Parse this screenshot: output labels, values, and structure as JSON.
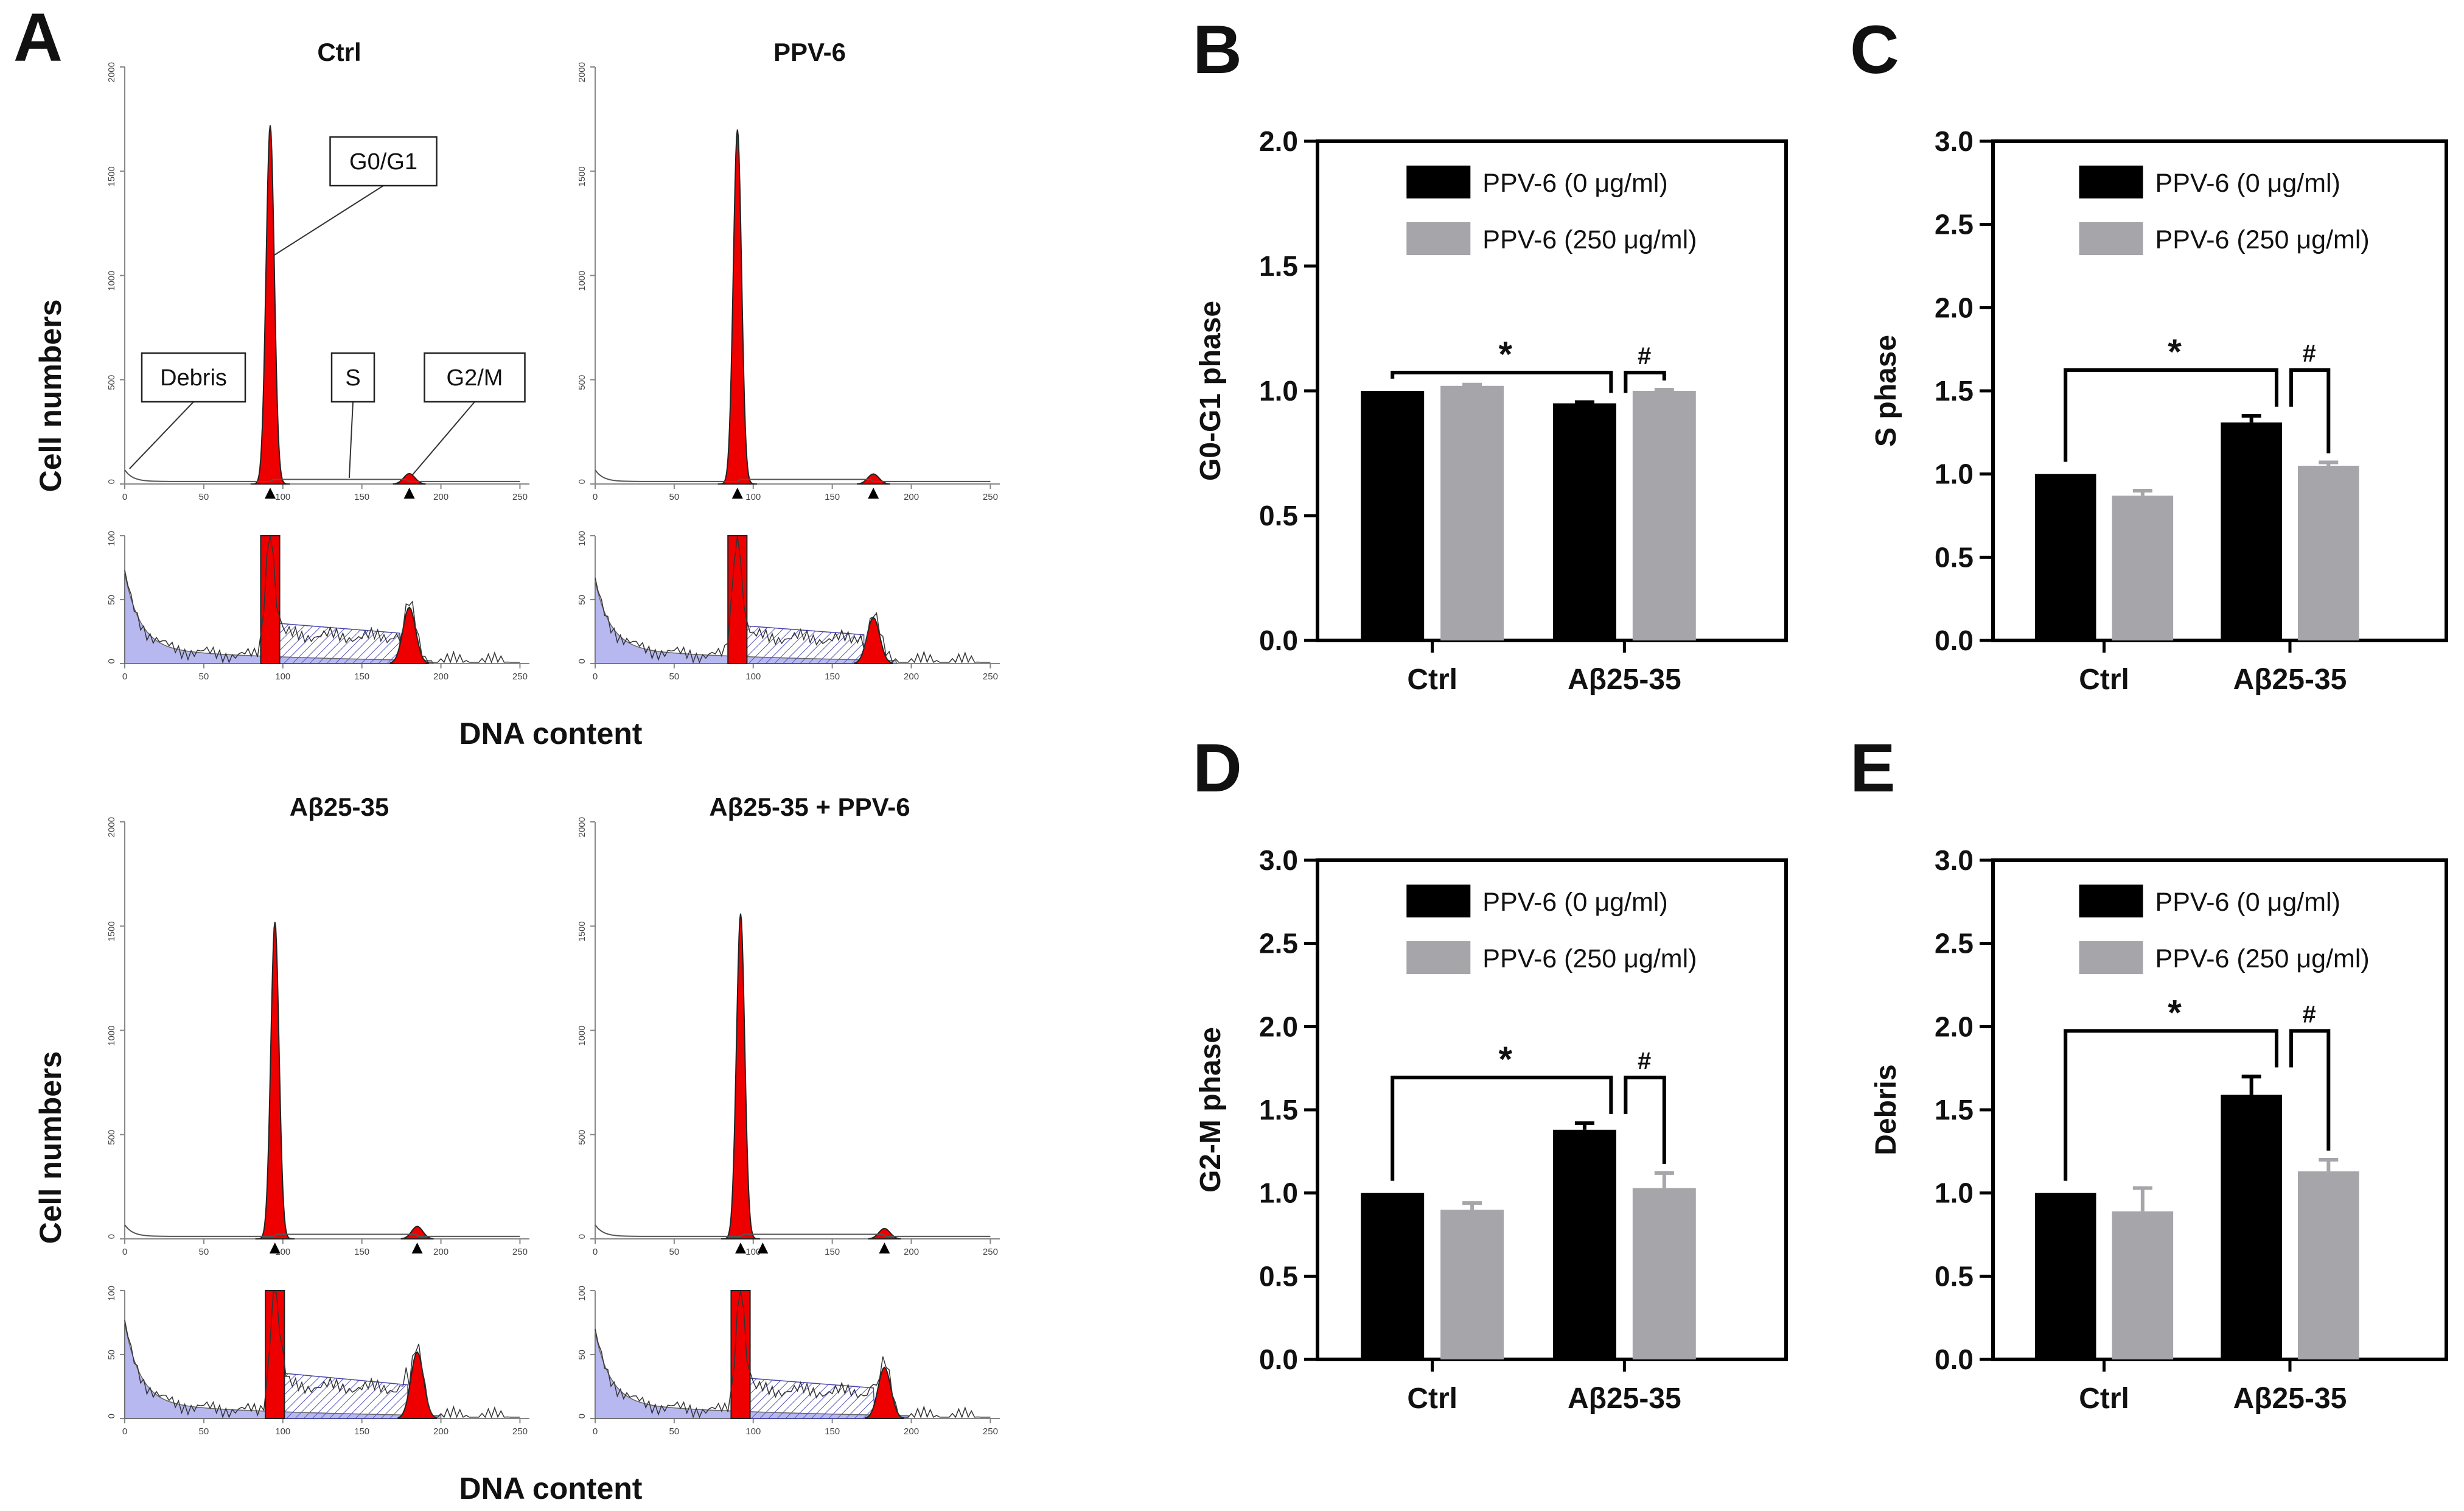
{
  "panel_a": {
    "letter": "A",
    "y_axis_label": "Cell numbers",
    "x_axis_label": "DNA content",
    "hist_top_ticks": [
      "0",
      "500",
      "1000",
      "1500",
      "2000"
    ],
    "hist_zoom_ticks": [
      "0",
      "50",
      "100"
    ],
    "x_ticks": [
      "0",
      "50",
      "100",
      "150",
      "200",
      "250"
    ],
    "annotations": [
      "Debris",
      "G0/G1",
      "S",
      "G2/M"
    ],
    "histograms": [
      {
        "title": "Ctrl",
        "g1_peak_channel": 92,
        "g1_peak_count": 1720,
        "g2_peak_channel": 180,
        "g2_peak_count": 50,
        "g2_zoom_count": 44,
        "debris_zoom": 58,
        "s_zoom": 22,
        "markers": [
          92,
          180
        ]
      },
      {
        "title": "PPV-6",
        "g1_peak_channel": 90,
        "g1_peak_count": 1700,
        "g2_peak_channel": 176,
        "g2_peak_count": 48,
        "g2_zoom_count": 36,
        "debris_zoom": 52,
        "s_zoom": 20,
        "markers": [
          90,
          176
        ]
      },
      {
        "title": "Aβ25-35",
        "g1_peak_channel": 95,
        "g1_peak_count": 1520,
        "g2_peak_channel": 185,
        "g2_peak_count": 60,
        "g2_zoom_count": 52,
        "debris_zoom": 62,
        "s_zoom": 26,
        "markers": [
          95,
          185
        ]
      },
      {
        "title": "Aβ25-35 + PPV-6",
        "g1_peak_channel": 92,
        "g1_peak_count": 1560,
        "g2_peak_channel": 183,
        "g2_peak_count": 50,
        "g2_zoom_count": 40,
        "debris_zoom": 55,
        "s_zoom": 22,
        "markers": [
          92,
          106,
          183
        ]
      }
    ]
  },
  "legend": {
    "black": "PPV-6 (0 μg/ml)",
    "gray": "PPV-6 (250 μg/ml)"
  },
  "colors": {
    "black_bar": "#000000",
    "gray_bar": "#a6a6aa",
    "g_peak": "#ee0000",
    "debris_fill": "#b8b8f0"
  },
  "chart_data": [
    {
      "panel": "B",
      "type": "bar",
      "ylabel": "G0-G1 phase",
      "ylim": [
        0,
        2.0
      ],
      "yticks": [
        "0.0",
        "0.5",
        "1.0",
        "1.5",
        "2.0"
      ],
      "categories": [
        "Ctrl",
        "Aβ25-35"
      ],
      "series": [
        {
          "name": "PPV-6 (0 μg/ml)",
          "values": [
            1.0,
            0.95
          ],
          "errors": [
            0,
            0.005
          ]
        },
        {
          "name": "PPV-6 (250 μg/ml)",
          "values": [
            1.02,
            1.0
          ],
          "errors": [
            0.005,
            0.005
          ]
        }
      ],
      "significance": [
        "*",
        "#"
      ]
    },
    {
      "panel": "C",
      "type": "bar",
      "ylabel": "S phase",
      "ylim": [
        0,
        3.0
      ],
      "yticks": [
        "0.0",
        "0.5",
        "1.0",
        "1.5",
        "2.0",
        "2.5",
        "3.0"
      ],
      "categories": [
        "Ctrl",
        "Aβ25-35"
      ],
      "series": [
        {
          "name": "PPV-6 (0 μg/ml)",
          "values": [
            1.0,
            1.31
          ],
          "errors": [
            0,
            0.04
          ]
        },
        {
          "name": "PPV-6 (250 μg/ml)",
          "values": [
            0.87,
            1.05
          ],
          "errors": [
            0.03,
            0.02
          ]
        }
      ],
      "significance": [
        "*",
        "#"
      ]
    },
    {
      "panel": "D",
      "type": "bar",
      "ylabel": "G2-M phase",
      "ylim": [
        0,
        3.0
      ],
      "yticks": [
        "0.0",
        "0.5",
        "1.0",
        "1.5",
        "2.0",
        "2.5",
        "3.0"
      ],
      "categories": [
        "Ctrl",
        "Aβ25-35"
      ],
      "series": [
        {
          "name": "PPV-6 (0 μg/ml)",
          "values": [
            1.0,
            1.38
          ],
          "errors": [
            0,
            0.04
          ]
        },
        {
          "name": "PPV-6 (250 μg/ml)",
          "values": [
            0.9,
            1.03
          ],
          "errors": [
            0.04,
            0.09
          ]
        }
      ],
      "significance": [
        "*",
        "#"
      ]
    },
    {
      "panel": "E",
      "type": "bar",
      "ylabel": "Debris",
      "ylim": [
        0,
        3.0
      ],
      "yticks": [
        "0.0",
        "0.5",
        "1.0",
        "1.5",
        "2.0",
        "2.5",
        "3.0"
      ],
      "categories": [
        "Ctrl",
        "Aβ25-35"
      ],
      "series": [
        {
          "name": "PPV-6 (0 μg/ml)",
          "values": [
            1.0,
            1.59
          ],
          "errors": [
            0,
            0.11
          ]
        },
        {
          "name": "PPV-6 (250 μg/ml)",
          "values": [
            0.89,
            1.13
          ],
          "errors": [
            0.14,
            0.07
          ]
        }
      ],
      "significance": [
        "*",
        "#"
      ]
    }
  ]
}
